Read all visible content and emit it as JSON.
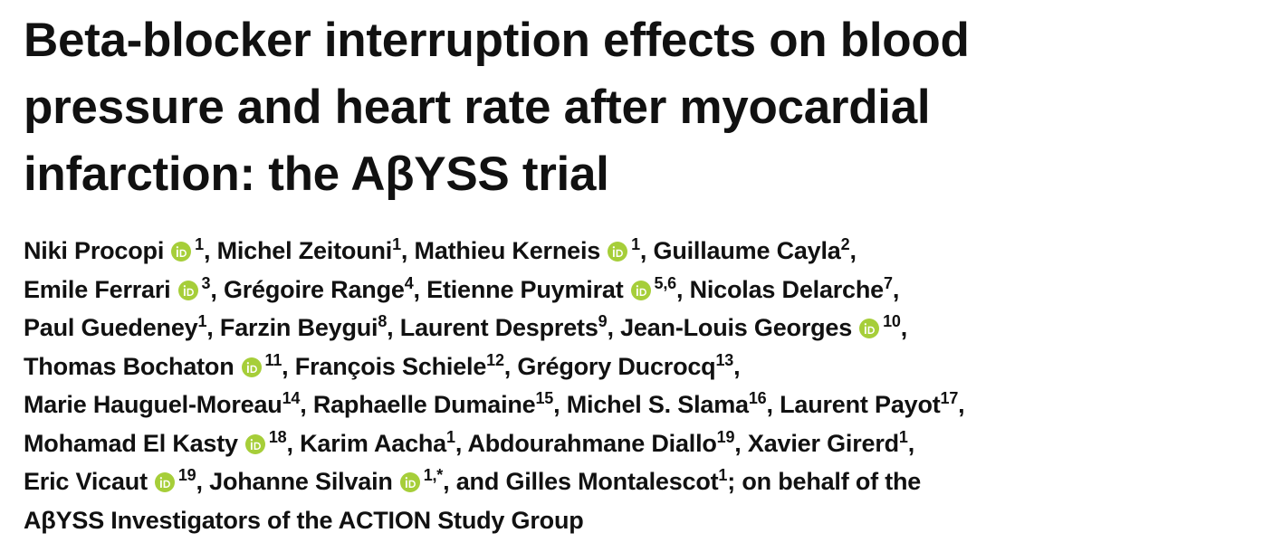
{
  "title_lines": [
    "Beta-blocker interruption effects on blood",
    "pressure and heart rate after myocardial",
    "infarction: the AβYSS trial"
  ],
  "separator": ",",
  "conjunction": "and",
  "author_lines": [
    [
      {
        "name": "Niki Procopi",
        "affil": "1",
        "orcid": true
      },
      {
        "name": "Michel Zeitouni",
        "affil": "1",
        "orcid": false
      },
      {
        "name": "Mathieu Kerneis",
        "affil": "1",
        "orcid": true
      },
      {
        "name": "Guillaume Cayla",
        "affil": "2",
        "orcid": false
      }
    ],
    [
      {
        "name": "Emile Ferrari",
        "affil": "3",
        "orcid": true
      },
      {
        "name": "Grégoire Range",
        "affil": "4",
        "orcid": false
      },
      {
        "name": "Etienne Puymirat",
        "affil": "5,6",
        "orcid": true
      },
      {
        "name": "Nicolas Delarche",
        "affil": "7",
        "orcid": false
      }
    ],
    [
      {
        "name": "Paul Guedeney",
        "affil": "1",
        "orcid": false
      },
      {
        "name": "Farzin Beygui",
        "affil": "8",
        "orcid": false
      },
      {
        "name": "Laurent Desprets",
        "affil": "9",
        "orcid": false
      },
      {
        "name": "Jean-Louis Georges",
        "affil": "10",
        "orcid": true
      }
    ],
    [
      {
        "name": "Thomas Bochaton",
        "affil": "11",
        "orcid": true
      },
      {
        "name": "François Schiele",
        "affil": "12",
        "orcid": false
      },
      {
        "name": "Grégory Ducrocq",
        "affil": "13",
        "orcid": false
      }
    ],
    [
      {
        "name": "Marie Hauguel-Moreau",
        "affil": "14",
        "orcid": false
      },
      {
        "name": "Raphaelle Dumaine",
        "affil": "15",
        "orcid": false
      },
      {
        "name": "Michel S. Slama",
        "affil": "16",
        "orcid": false
      },
      {
        "name": "Laurent Payot",
        "affil": "17",
        "orcid": false
      }
    ],
    [
      {
        "name": "Mohamad El Kasty",
        "affil": "18",
        "orcid": true
      },
      {
        "name": "Karim Aacha",
        "affil": "1",
        "orcid": false
      },
      {
        "name": "Abdourahmane Diallo",
        "affil": "19",
        "orcid": false
      },
      {
        "name": "Xavier Girerd",
        "affil": "1",
        "orcid": false
      }
    ],
    [
      {
        "name": "Eric Vicaut",
        "affil": "19",
        "orcid": true
      },
      {
        "name": "Johanne Silvain",
        "affil": "1,*",
        "orcid": true
      },
      {
        "name": "Gilles Montalescot",
        "affil": "1",
        "orcid": false
      }
    ]
  ],
  "group": [
    "; on behalf of the",
    "AβYSS Investigators of the ACTION Study Group"
  ]
}
